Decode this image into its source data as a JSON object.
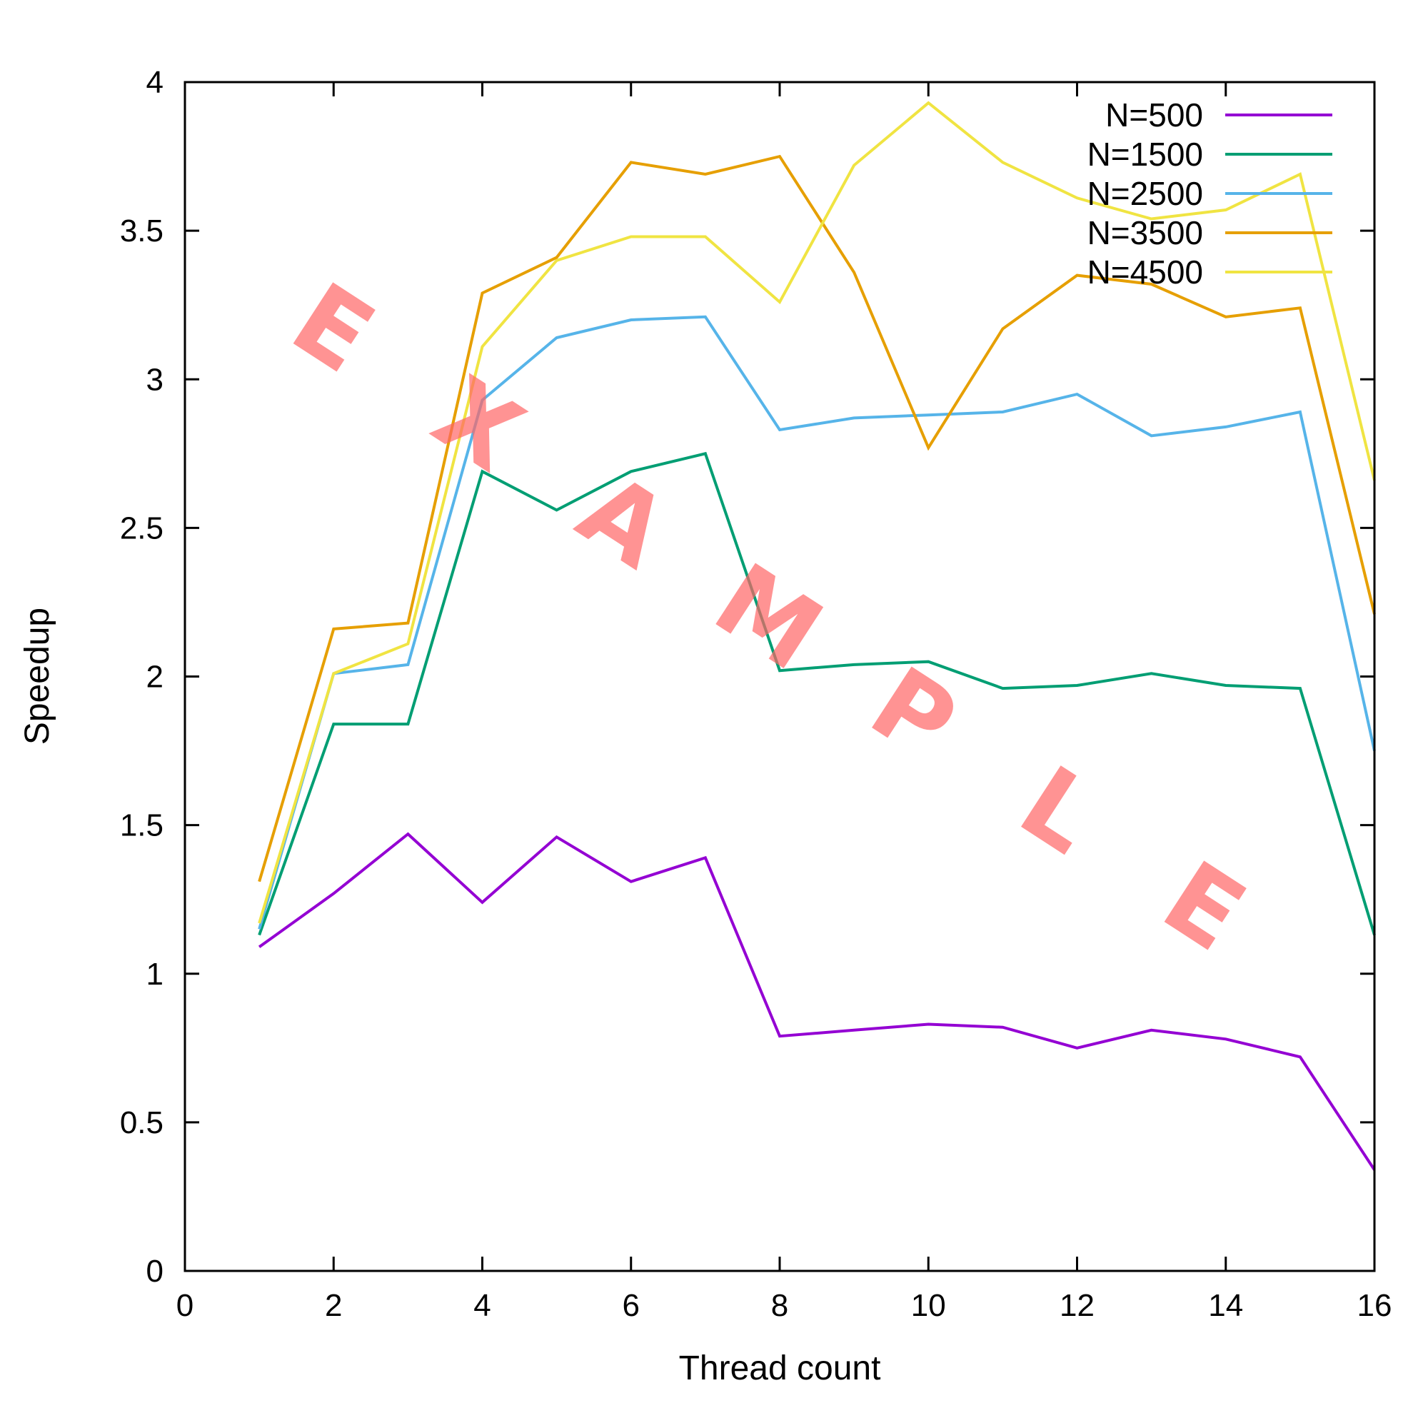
{
  "chart_data": {
    "type": "line",
    "xlabel": "Thread count",
    "ylabel": "Speedup",
    "xlim": [
      0,
      16
    ],
    "ylim": [
      0,
      4
    ],
    "xticks": [
      0,
      2,
      4,
      6,
      8,
      10,
      12,
      14,
      16
    ],
    "yticks": [
      0,
      0.5,
      1,
      1.5,
      2,
      2.5,
      3,
      3.5,
      4
    ],
    "x": [
      1,
      2,
      3,
      4,
      5,
      6,
      7,
      8,
      9,
      10,
      11,
      12,
      13,
      14,
      15,
      16
    ],
    "legend_position": "top-right",
    "grid": false,
    "series": [
      {
        "name": "N=500",
        "color": "#9400d3",
        "values": [
          1.09,
          1.27,
          1.47,
          1.24,
          1.46,
          1.31,
          1.39,
          0.79,
          0.81,
          0.83,
          0.82,
          0.75,
          0.81,
          0.78,
          0.72,
          0.34
        ]
      },
      {
        "name": "N=1500",
        "color": "#009e73",
        "values": [
          1.13,
          1.84,
          1.84,
          2.69,
          2.56,
          2.69,
          2.75,
          2.02,
          2.04,
          2.05,
          1.96,
          1.97,
          2.01,
          1.97,
          1.96,
          1.13
        ]
      },
      {
        "name": "N=2500",
        "color": "#56b4e9",
        "values": [
          1.15,
          2.01,
          2.04,
          2.93,
          3.14,
          3.2,
          3.21,
          2.83,
          2.87,
          2.88,
          2.89,
          2.95,
          2.81,
          2.84,
          2.89,
          1.75
        ]
      },
      {
        "name": "N=3500",
        "color": "#e69f00",
        "values": [
          1.31,
          2.16,
          2.18,
          3.29,
          3.41,
          3.73,
          3.69,
          3.75,
          3.36,
          2.77,
          3.17,
          3.35,
          3.32,
          3.21,
          3.24,
          2.21
        ]
      },
      {
        "name": "N=4500",
        "color": "#f0e442",
        "values": [
          1.17,
          2.01,
          2.11,
          3.11,
          3.4,
          3.48,
          3.48,
          3.26,
          3.72,
          3.93,
          3.73,
          3.61,
          3.54,
          3.57,
          3.69,
          2.66
        ]
      }
    ]
  },
  "watermark": "EXAMPLE"
}
